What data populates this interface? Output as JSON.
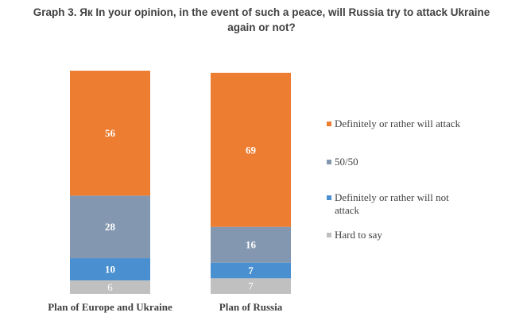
{
  "title_lines": [
    "Graph 3. Як In your opinion, in the event of such a peace, will Russia try to attack Ukraine",
    "again or not?"
  ],
  "chart_data": {
    "type": "bar",
    "stacked": true,
    "categories": [
      "Plan of Europe and Ukraine",
      "Plan of Russia"
    ],
    "series": [
      {
        "name": "Hard to say",
        "values": [
          6,
          7
        ],
        "color": "#C0C0C0"
      },
      {
        "name": "Definitely or rather will not attack",
        "values": [
          10,
          7
        ],
        "color": "#4A90D0"
      },
      {
        "name": "50/50",
        "values": [
          28,
          16
        ],
        "color": "#8497B0"
      },
      {
        "name": "Definitely or rather will attack",
        "values": [
          56,
          69
        ],
        "color": "#ED7D31"
      }
    ],
    "ylim": [
      0,
      100
    ],
    "grid": false,
    "legend": {
      "position": "right",
      "order": [
        3,
        2,
        1,
        0
      ],
      "entries": [
        [
          "Definitely or rather will attack"
        ],
        [
          "50/50"
        ],
        [
          "Definitely or rather will not",
          "attack"
        ],
        [
          "Hard to say"
        ]
      ]
    }
  }
}
